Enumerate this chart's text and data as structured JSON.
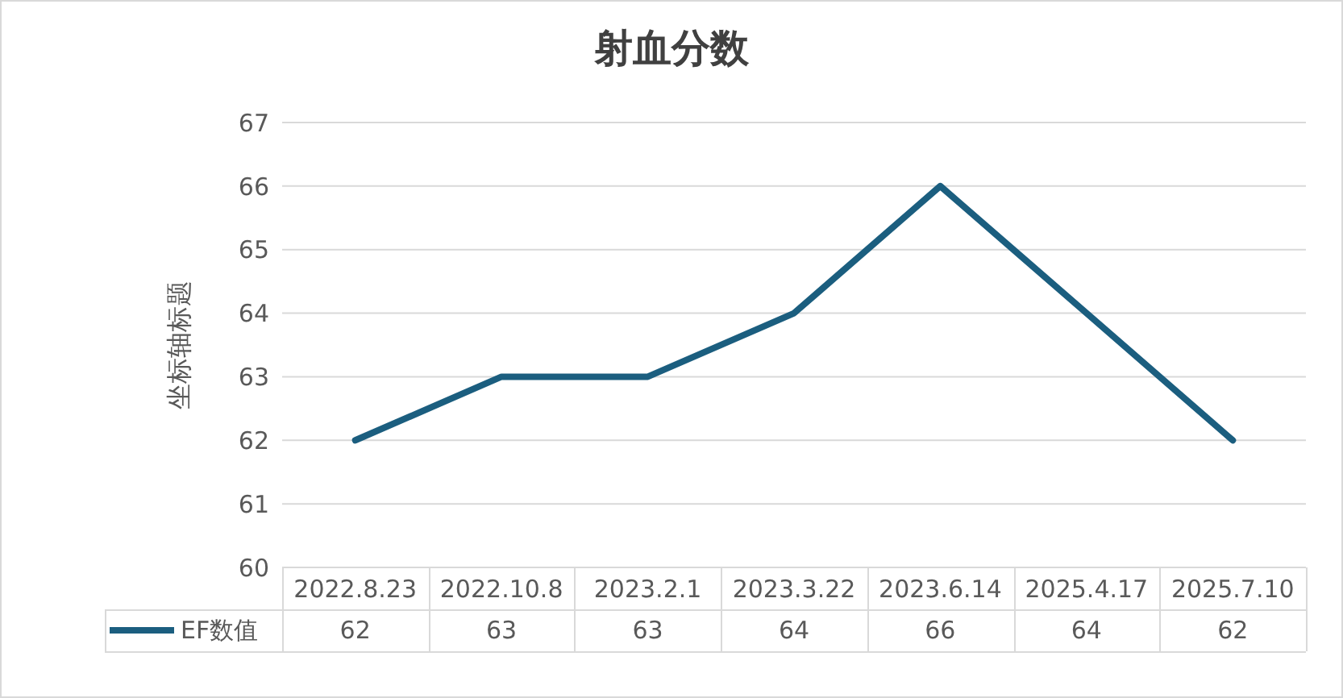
{
  "chart_data": {
    "type": "line",
    "title": "射血分数",
    "ylabel": "坐标轴标题",
    "categories": [
      "2022.8.23",
      "2022.10.8",
      "2023.2.1",
      "2023.3.22",
      "2023.6.14",
      "2025.4.17",
      "2025.7.10"
    ],
    "series": [
      {
        "name": "EF数值",
        "color": "#1b5e7f",
        "values": [
          62,
          63,
          63,
          64,
          66,
          64,
          62
        ]
      }
    ],
    "ylim": [
      60,
      67
    ],
    "yticks": [
      60,
      61,
      62,
      63,
      64,
      65,
      66,
      67
    ],
    "grid": "y",
    "legend": "bottom",
    "marker": "none",
    "line_style": "solid",
    "data_labels": true
  }
}
